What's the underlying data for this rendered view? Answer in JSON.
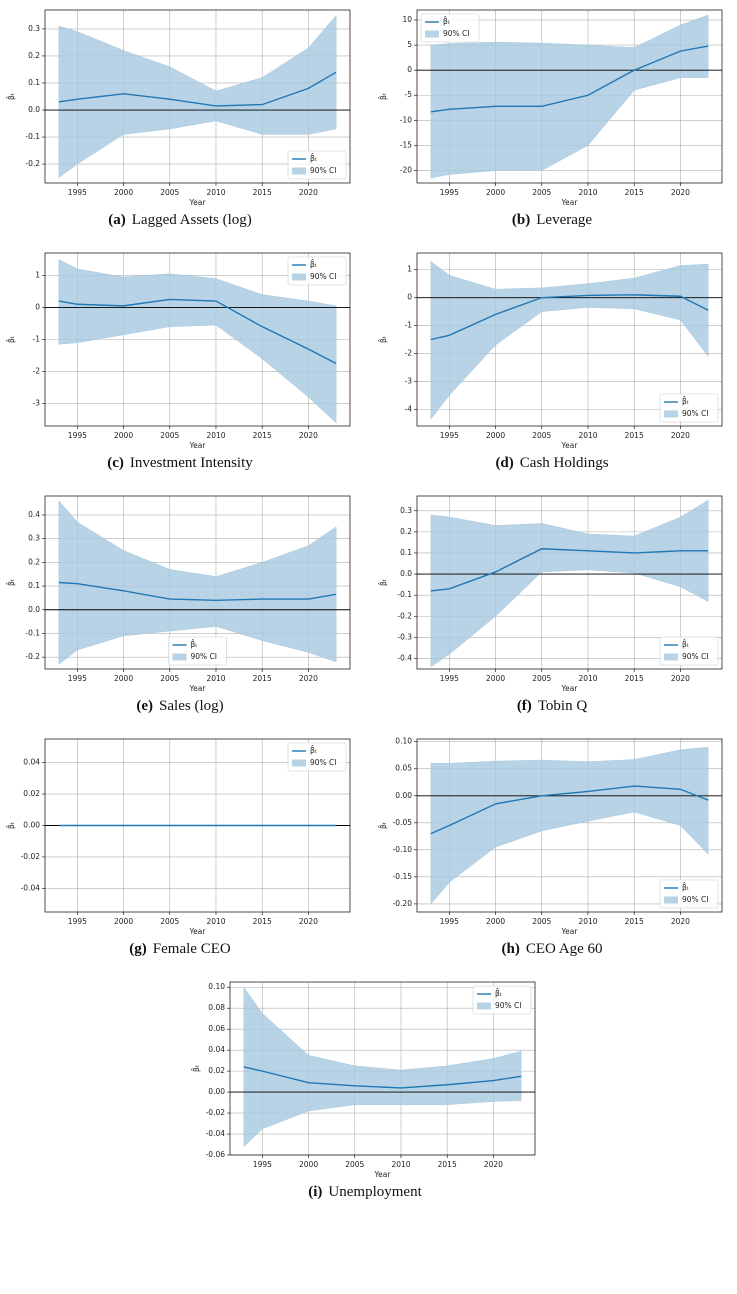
{
  "chart_data": [
    {
      "type": "line",
      "caption_label": "(a)",
      "caption": "Lagged Assets (log)",
      "xlabel": "Year",
      "ylabel": "β̂ₜ",
      "x": [
        1993,
        1995,
        2000,
        2005,
        2010,
        2015,
        2020,
        2023
      ],
      "series": [
        {
          "name": "β̂ₜ",
          "color": "#1f77b4",
          "values": [
            0.03,
            0.04,
            0.06,
            0.04,
            0.015,
            0.02,
            0.08,
            0.14
          ]
        }
      ],
      "band": {
        "name": "90% CI",
        "color": "#a6c8e0",
        "lower": [
          -0.25,
          -0.2,
          -0.09,
          -0.07,
          -0.04,
          -0.09,
          -0.09,
          -0.07
        ],
        "upper": [
          0.31,
          0.29,
          0.22,
          0.16,
          0.07,
          0.12,
          0.23,
          0.35
        ]
      },
      "hline": 0,
      "xlim": [
        1991.5,
        2024.5
      ],
      "ylim": [
        -0.27,
        0.37
      ],
      "xticks": [
        1995,
        2000,
        2005,
        2010,
        2015,
        2020
      ],
      "yticks": [
        -0.2,
        -0.1,
        {
          "value": 0,
          "label": "0.0"
        },
        0.1,
        0.2,
        0.3
      ],
      "grid": true,
      "legend": "lower right"
    },
    {
      "type": "line",
      "caption_label": "(b)",
      "caption": "Leverage",
      "xlabel": "Year",
      "ylabel": "β̂ₜ",
      "x": [
        1993,
        1995,
        2000,
        2005,
        2010,
        2015,
        2020,
        2023
      ],
      "series": [
        {
          "name": "β̂ₜ",
          "color": "#1f77b4",
          "values": [
            -8.3,
            -7.8,
            -7.2,
            -7.2,
            -5,
            0,
            3.8,
            4.8
          ]
        }
      ],
      "band": {
        "name": "90% CI",
        "color": "#a6c8e0",
        "lower": [
          -21.5,
          -20.8,
          -20,
          -20,
          -15,
          -4,
          -1.5,
          -1.5
        ],
        "upper": [
          5,
          5.3,
          5.6,
          5.4,
          5,
          4.5,
          9,
          11
        ]
      },
      "hline": 0,
      "xlim": [
        1991.5,
        2024.5
      ],
      "ylim": [
        -22.5,
        12
      ],
      "xticks": [
        1995,
        2000,
        2005,
        2010,
        2015,
        2020
      ],
      "yticks": [
        -20,
        -15,
        -10,
        -5,
        0,
        5,
        10
      ],
      "grid": true,
      "legend": "upper left"
    },
    {
      "type": "line",
      "caption_label": "(c)",
      "caption": "Investment Intensity",
      "xlabel": "Year",
      "ylabel": "β̂ₜ",
      "x": [
        1993,
        1995,
        2000,
        2005,
        2010,
        2015,
        2020,
        2023
      ],
      "series": [
        {
          "name": "β̂ₜ",
          "color": "#1f77b4",
          "values": [
            0.2,
            0.1,
            0.05,
            0.25,
            0.2,
            -0.6,
            -1.3,
            -1.75
          ]
        }
      ],
      "band": {
        "name": "90% CI",
        "color": "#a6c8e0",
        "lower": [
          -1.15,
          -1.1,
          -0.85,
          -0.6,
          -0.55,
          -1.6,
          -2.8,
          -3.6
        ],
        "upper": [
          1.5,
          1.2,
          0.95,
          1.05,
          0.9,
          0.4,
          0.2,
          0.05
        ]
      },
      "hline": 0,
      "xlim": [
        1991.5,
        2024.5
      ],
      "ylim": [
        -3.7,
        1.7
      ],
      "xticks": [
        1995,
        2000,
        2005,
        2010,
        2015,
        2020
      ],
      "yticks": [
        -3,
        -2,
        -1,
        0,
        1
      ],
      "grid": true,
      "legend": "upper right"
    },
    {
      "type": "line",
      "caption_label": "(d)",
      "caption": "Cash Holdings",
      "xlabel": "Year",
      "ylabel": "β̂ₜ",
      "x": [
        1993,
        1995,
        2000,
        2005,
        2010,
        2015,
        2020,
        2023
      ],
      "series": [
        {
          "name": "β̂ₜ",
          "color": "#1f77b4",
          "values": [
            -1.5,
            -1.35,
            -0.6,
            0,
            0.08,
            0.1,
            0.05,
            -0.45
          ]
        }
      ],
      "band": {
        "name": "90% CI",
        "color": "#a6c8e0",
        "lower": [
          -4.35,
          -3.5,
          -1.7,
          -0.5,
          -0.35,
          -0.4,
          -0.8,
          -2.1
        ],
        "upper": [
          1.3,
          0.8,
          0.3,
          0.35,
          0.5,
          0.7,
          1.15,
          1.2
        ]
      },
      "hline": 0,
      "xlim": [
        1991.5,
        2024.5
      ],
      "ylim": [
        -4.6,
        1.6
      ],
      "xticks": [
        1995,
        2000,
        2005,
        2010,
        2015,
        2020
      ],
      "yticks": [
        -4,
        -3,
        -2,
        -1,
        0,
        1
      ],
      "grid": true,
      "legend": "lower right"
    },
    {
      "type": "line",
      "caption_label": "(e)",
      "caption": "Sales (log)",
      "xlabel": "Year",
      "ylabel": "β̂ₜ",
      "x": [
        1993,
        1995,
        2000,
        2005,
        2010,
        2015,
        2020,
        2023
      ],
      "series": [
        {
          "name": "β̂ₜ",
          "color": "#1f77b4",
          "values": [
            0.115,
            0.11,
            0.08,
            0.045,
            0.04,
            0.045,
            0.045,
            0.065
          ]
        }
      ],
      "band": {
        "name": "90% CI",
        "color": "#a6c8e0",
        "lower": [
          -0.23,
          -0.17,
          -0.11,
          -0.09,
          -0.07,
          -0.13,
          -0.18,
          -0.22
        ],
        "upper": [
          0.46,
          0.37,
          0.25,
          0.17,
          0.14,
          0.2,
          0.27,
          0.35
        ]
      },
      "hline": 0,
      "xlim": [
        1991.5,
        2024.5
      ],
      "ylim": [
        -0.25,
        0.48
      ],
      "xticks": [
        1995,
        2000,
        2005,
        2010,
        2015,
        2020
      ],
      "yticks": [
        -0.2,
        -0.1,
        {
          "value": 0,
          "label": "0.0"
        },
        0.1,
        0.2,
        0.3,
        0.4
      ],
      "grid": true,
      "legend": "lower center"
    },
    {
      "type": "line",
      "caption_label": "(f)",
      "caption": "Tobin Q",
      "xlabel": "Year",
      "ylabel": "β̂ₜ",
      "x": [
        1993,
        1995,
        2000,
        2005,
        2010,
        2015,
        2020,
        2023
      ],
      "series": [
        {
          "name": "β̂ₜ",
          "color": "#1f77b4",
          "values": [
            -0.08,
            -0.07,
            0.01,
            0.12,
            0.11,
            0.1,
            0.11,
            0.11
          ]
        }
      ],
      "band": {
        "name": "90% CI",
        "color": "#a6c8e0",
        "lower": [
          -0.44,
          -0.38,
          -0.2,
          0.01,
          0.02,
          0.005,
          -0.06,
          -0.13
        ],
        "upper": [
          0.28,
          0.27,
          0.23,
          0.24,
          0.19,
          0.18,
          0.27,
          0.35
        ]
      },
      "hline": 0,
      "xlim": [
        1991.5,
        2024.5
      ],
      "ylim": [
        -0.45,
        0.37
      ],
      "xticks": [
        1995,
        2000,
        2005,
        2010,
        2015,
        2020
      ],
      "yticks": [
        -0.4,
        -0.3,
        -0.2,
        -0.1,
        {
          "value": 0,
          "label": "0.0"
        },
        0.1,
        0.2,
        0.3
      ],
      "grid": true,
      "legend": "lower right"
    },
    {
      "type": "line",
      "caption_label": "(g)",
      "caption": "Female CEO",
      "xlabel": "Year",
      "ylabel": "β̂ₜ",
      "x": [
        1993,
        1995,
        2000,
        2005,
        2010,
        2015,
        2020,
        2023
      ],
      "series": [
        {
          "name": "β̂ₜ",
          "color": "#1f77b4",
          "values": [
            0,
            0,
            0,
            0,
            0,
            0,
            0,
            0
          ]
        }
      ],
      "band": {
        "name": "90% CI",
        "color": "#a6c8e0",
        "lower": [
          0,
          0,
          0,
          0,
          0,
          0,
          0,
          0
        ],
        "upper": [
          0,
          0,
          0,
          0,
          0,
          0,
          0,
          0
        ]
      },
      "hline": 0,
      "xlim": [
        1991.5,
        2024.5
      ],
      "ylim": [
        -0.055,
        0.055
      ],
      "xticks": [
        1995,
        2000,
        2005,
        2010,
        2015,
        2020
      ],
      "yticks": [
        -0.04,
        -0.02,
        {
          "value": 0,
          "label": "0.00"
        },
        0.02,
        0.04
      ],
      "grid": true,
      "legend": "upper right"
    },
    {
      "type": "line",
      "caption_label": "(h)",
      "caption": "CEO Age 60",
      "xlabel": "Year",
      "ylabel": "β̂ₜ",
      "x": [
        1993,
        1995,
        2000,
        2005,
        2010,
        2015,
        2020,
        2023
      ],
      "series": [
        {
          "name": "β̂ₜ",
          "color": "#1f77b4",
          "values": [
            -0.07,
            -0.055,
            -0.015,
            0,
            0.008,
            0.018,
            0.012,
            -0.008
          ]
        }
      ],
      "band": {
        "name": "90% CI",
        "color": "#a6c8e0",
        "lower": [
          -0.2,
          -0.16,
          -0.095,
          -0.065,
          -0.047,
          -0.03,
          -0.055,
          -0.108
        ],
        "upper": [
          0.06,
          0.06,
          0.064,
          0.066,
          0.063,
          0.067,
          0.085,
          0.09
        ]
      },
      "hline": 0,
      "xlim": [
        1991.5,
        2024.5
      ],
      "ylim": [
        -0.215,
        0.105
      ],
      "xticks": [
        1995,
        2000,
        2005,
        2010,
        2015,
        2020
      ],
      "yticks": [
        {
          "value": -0.2,
          "label": "-0.20"
        },
        -0.15,
        {
          "value": -0.1,
          "label": "-0.10"
        },
        -0.05,
        {
          "value": 0,
          "label": "0.00"
        },
        0.05,
        {
          "value": 0.1,
          "label": "0.10"
        }
      ],
      "grid": true,
      "legend": "lower right"
    },
    {
      "type": "line",
      "caption_label": "(i)",
      "caption": "Unemployment",
      "xlabel": "Year",
      "ylabel": "β̂ₜ",
      "x": [
        1993,
        1995,
        2000,
        2005,
        2010,
        2015,
        2020,
        2023
      ],
      "series": [
        {
          "name": "β̂ₜ",
          "color": "#1f77b4",
          "values": [
            0.024,
            0.02,
            0.009,
            0.006,
            0.004,
            0.007,
            0.011,
            0.015
          ]
        }
      ],
      "band": {
        "name": "90% CI",
        "color": "#a6c8e0",
        "lower": [
          -0.052,
          -0.035,
          -0.018,
          -0.012,
          -0.012,
          -0.012,
          -0.009,
          -0.008
        ],
        "upper": [
          0.1,
          0.075,
          0.035,
          0.025,
          0.021,
          0.025,
          0.032,
          0.039
        ]
      },
      "hline": 0,
      "xlim": [
        1991.5,
        2024.5
      ],
      "ylim": [
        -0.06,
        0.105
      ],
      "xticks": [
        1995,
        2000,
        2005,
        2010,
        2015,
        2020
      ],
      "yticks": [
        -0.06,
        -0.04,
        -0.02,
        {
          "value": 0,
          "label": "0.00"
        },
        0.02,
        0.04,
        0.06,
        0.08,
        {
          "value": 0.1,
          "label": "0.10"
        }
      ],
      "grid": true,
      "legend": "upper right"
    }
  ]
}
